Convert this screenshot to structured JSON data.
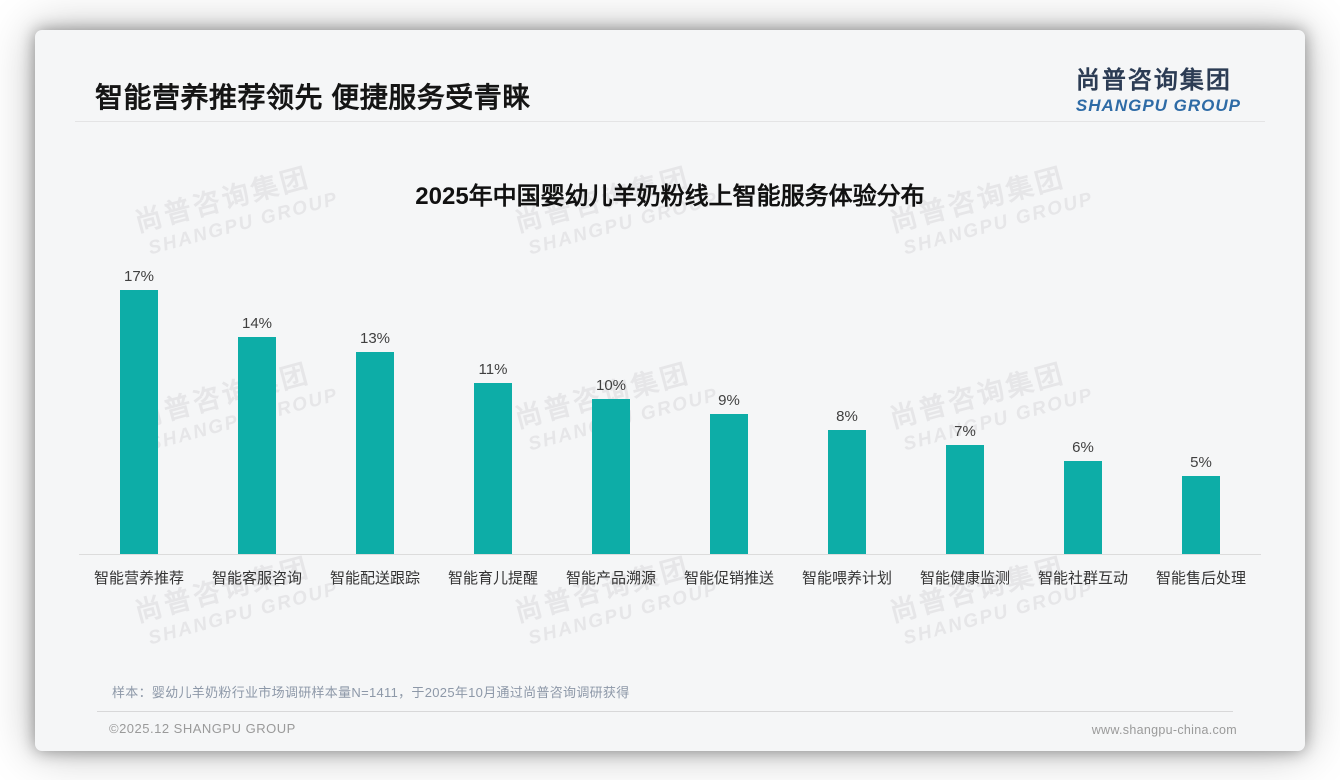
{
  "header": {
    "title": "智能营养推荐领先 便捷服务受青睐"
  },
  "logo": {
    "cn": "尚普咨询集团",
    "en": "SHANGPU GROUP"
  },
  "watermark": {
    "line1": "尚普咨询集团",
    "line2": "SHANGPU GROUP"
  },
  "chart_data": {
    "type": "bar",
    "title": "2025年中国婴幼儿羊奶粉线上智能服务体验分布",
    "categories": [
      "智能营养推荐",
      "智能客服咨询",
      "智能配送跟踪",
      "智能育儿提醒",
      "智能产品溯源",
      "智能促销推送",
      "智能喂养计划",
      "智能健康监测",
      "智能社群互动",
      "智能售后处理"
    ],
    "values": [
      17,
      14,
      13,
      11,
      10,
      9,
      8,
      7,
      6,
      5
    ],
    "data_labels": [
      "17%",
      "14%",
      "13%",
      "11%",
      "10%",
      "9%",
      "8%",
      "7%",
      "6%",
      "5%"
    ],
    "unit": "%",
    "xlabel": "",
    "ylabel": "",
    "ylim": [
      0,
      18
    ],
    "grid": false,
    "legend": false,
    "bar_color": "#0dada7"
  },
  "footnote": {
    "sample": "样本：婴幼儿羊奶粉行业市场调研样本量N=1411，于2025年10月通过尚普咨询调研获得"
  },
  "footer": {
    "left": "©2025.12 SHANGPU GROUP",
    "right": "www.shangpu-china.com"
  },
  "colors": {
    "bar": "#0dada7",
    "logo_cn": "#2c3c54",
    "logo_en": "#2e6ba6",
    "note": "#8d98a8"
  }
}
